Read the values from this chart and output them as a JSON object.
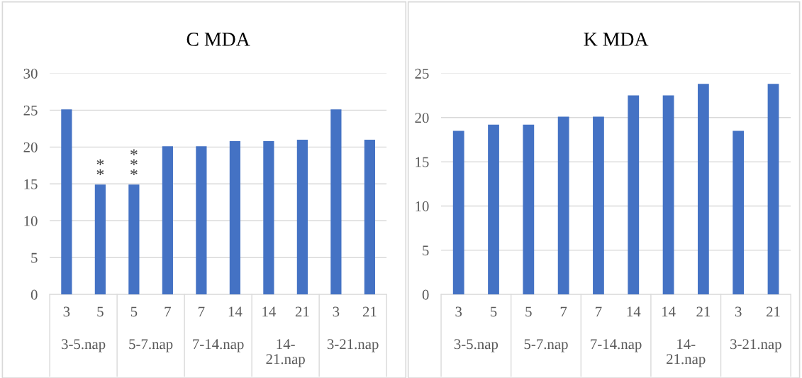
{
  "chart_data": [
    {
      "type": "bar",
      "title": "C MDA",
      "categories": [
        "3",
        "5",
        "5",
        "7",
        "7",
        "14",
        "14",
        "21",
        "3",
        "21"
      ],
      "color": "#4472c4",
      "values": [
        25.1,
        14.9,
        14.9,
        20.1,
        20.1,
        20.8,
        20.8,
        21,
        25.1,
        21
      ],
      "value_labels": [
        null,
        "**",
        "***",
        null,
        null,
        null,
        null,
        null,
        null,
        null
      ],
      "annotations": [
        "3-5.nap",
        "5-7.nap",
        "7-14.nap",
        "14-\n21.nap",
        "3-21.nap"
      ],
      "ylim": [
        0,
        30
      ],
      "yticks": [
        0,
        5,
        10,
        15,
        20,
        25,
        30
      ],
      "grid": "y"
    },
    {
      "type": "bar",
      "title": "K MDA",
      "categories": [
        "3",
        "5",
        "5",
        "7",
        "7",
        "14",
        "14",
        "21",
        "3",
        "21"
      ],
      "color": "#4472c4",
      "values": [
        18.5,
        19.2,
        19.2,
        20.1,
        20.1,
        22.5,
        22.5,
        23.8,
        18.5,
        23.8
      ],
      "annotations": [
        "3-5.nap",
        "5-7.nap",
        "7-14.nap",
        "14-\n21.nap",
        "3-21.nap"
      ],
      "ylim": [
        0,
        25
      ],
      "yticks": [
        0,
        5,
        10,
        15,
        20,
        25
      ],
      "grid": "y"
    }
  ]
}
